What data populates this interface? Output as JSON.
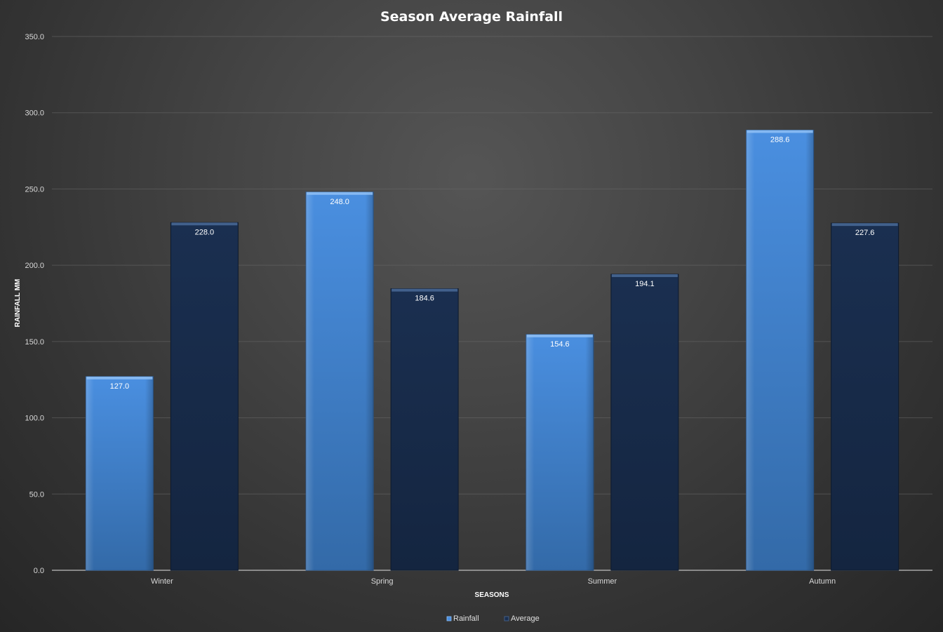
{
  "chart_data": {
    "type": "bar",
    "title": "Season Average Rainfall",
    "xlabel": "SEASONS",
    "ylabel": "RAINFALL MM",
    "categories": [
      "Winter",
      "Spring",
      "Summer",
      "Autumn"
    ],
    "series": [
      {
        "name": "Rainfall",
        "values": [
          127.0,
          248.0,
          154.6,
          288.6
        ],
        "color": "#3f86d6"
      },
      {
        "name": "Average",
        "values": [
          228.0,
          184.6,
          194.1,
          227.6
        ],
        "color": "#172a48"
      }
    ],
    "ylim": [
      0,
      350
    ],
    "yticks": [
      "0.0",
      "50.0",
      "100.0",
      "150.0",
      "200.0",
      "250.0",
      "300.0",
      "350.0"
    ],
    "data_labels": [
      [
        "127.0",
        "248.0",
        "154.6",
        "288.6"
      ],
      [
        "228.0",
        "184.6",
        "194.1",
        "227.6"
      ]
    ],
    "grid": true,
    "legend_position": "bottom"
  }
}
